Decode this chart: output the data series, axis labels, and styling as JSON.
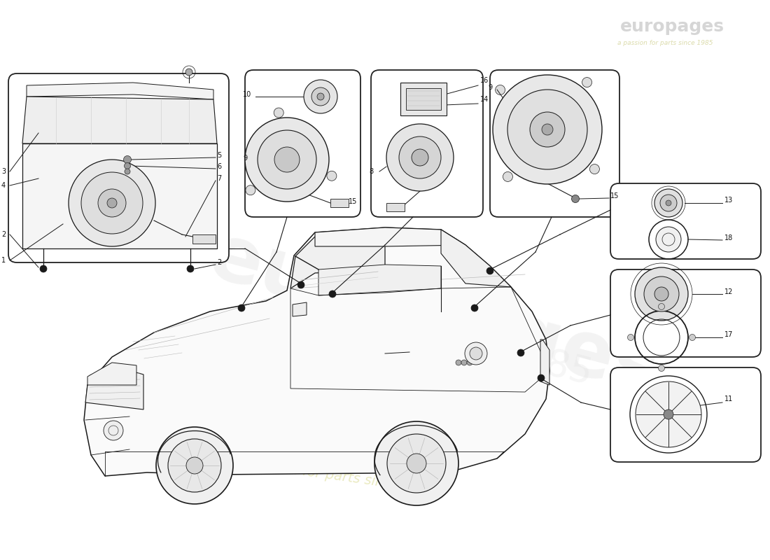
{
  "bg": "#ffffff",
  "lc": "#1a1a1a",
  "wm1": "europages",
  "wm2": "a passion for parts since 1985",
  "wm_c1": "#d0d0d0",
  "wm_c2": "#e8e8a8",
  "box1_labels": [
    "1",
    "2",
    "3",
    "4",
    "5",
    "6",
    "7",
    "2"
  ],
  "box2_labels": [
    "10",
    "9",
    "15"
  ],
  "box3_labels": [
    "16",
    "14",
    "8"
  ],
  "box4_labels": [
    "9",
    "15"
  ],
  "box5_labels": [
    "13",
    "18"
  ],
  "box6_labels": [
    "12",
    "17"
  ],
  "box7_labels": [
    "11"
  ]
}
